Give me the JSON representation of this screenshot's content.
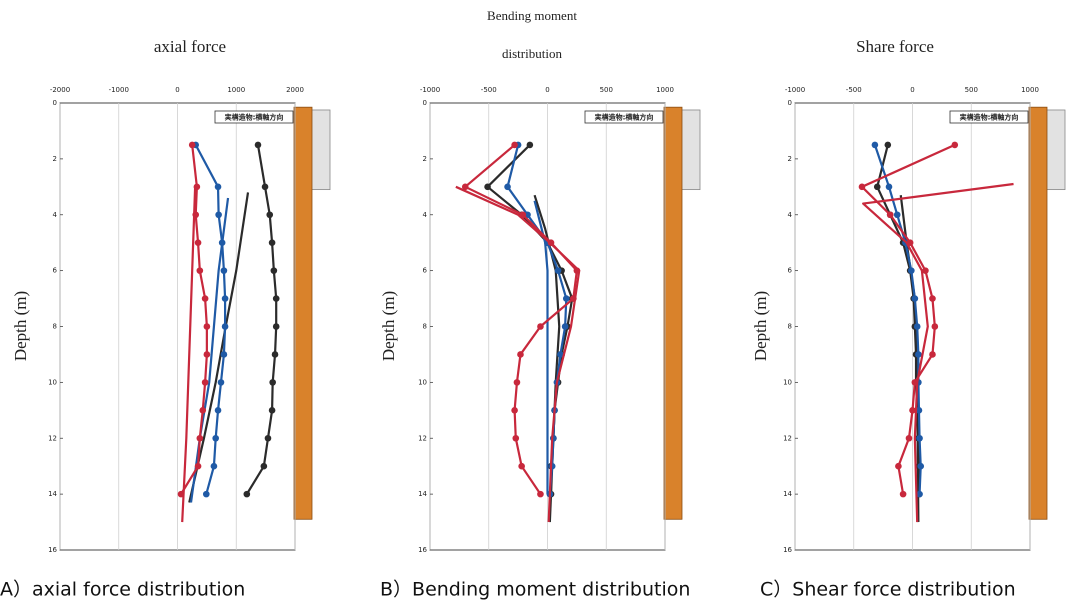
{
  "chart_data": [
    {
      "type": "line",
      "title": [
        "axial force"
      ],
      "caption": "A）axial force distribution",
      "ylabel": "Depth (m)",
      "note": "実構造物:横軸方向",
      "xlim": [
        -2000,
        2000
      ],
      "xticks": [
        -2000,
        -1000,
        0,
        1000,
        2000
      ],
      "ylim": [
        0,
        16
      ],
      "yticks": [
        0,
        2,
        4,
        6,
        8,
        10,
        12,
        14,
        16
      ],
      "y_inverted": true,
      "grid": "x",
      "series": [
        {
          "color": "#2b2b2b",
          "markers": true,
          "x": [
            1370,
            1490,
            1570,
            1610,
            1640,
            1680,
            1680,
            1660,
            1620,
            1610,
            1540,
            1470,
            1180
          ],
          "y": [
            1.5,
            3,
            4,
            5,
            6,
            7,
            8,
            9,
            10,
            11,
            12,
            13,
            14
          ]
        },
        {
          "color": "#2b2b2b",
          "markers": false,
          "x": [
            1200,
            1000,
            820,
            650,
            450,
            200
          ],
          "y": [
            3.2,
            6,
            8,
            10,
            12,
            14.3
          ]
        },
        {
          "color": "#1f5aa6",
          "markers": true,
          "x": [
            310,
            690,
            700,
            760,
            790,
            810,
            810,
            790,
            740,
            690,
            650,
            620,
            490
          ],
          "y": [
            1.5,
            3,
            4,
            5,
            6,
            7,
            8,
            9,
            10,
            11,
            12,
            13,
            14
          ]
        },
        {
          "color": "#1f5aa6",
          "markers": false,
          "x": [
            860,
            700,
            620,
            540,
            380,
            230
          ],
          "y": [
            3.4,
            6,
            8,
            10,
            12,
            14.3
          ]
        },
        {
          "color": "#c8283c",
          "markers": true,
          "x": [
            250,
            330,
            310,
            350,
            380,
            470,
            500,
            500,
            470,
            430,
            380,
            350,
            60
          ],
          "y": [
            1.5,
            3,
            4,
            5,
            6,
            7,
            8,
            9,
            10,
            11,
            12,
            13,
            14
          ]
        },
        {
          "color": "#c8283c",
          "markers": false,
          "x": [
            300,
            250,
            200,
            150,
            80
          ],
          "y": [
            3,
            6,
            9,
            12,
            15
          ]
        }
      ]
    },
    {
      "type": "line",
      "title": [
        "Bending moment",
        "distribution"
      ],
      "caption": "B）Bending moment distribution",
      "ylabel": "Depth (m)",
      "note": "実構造物:横軸方向",
      "xlim": [
        -1000,
        1000
      ],
      "xticks": [
        -1000,
        -500,
        0,
        500,
        1000
      ],
      "ylim": [
        0,
        16
      ],
      "yticks": [
        0,
        2,
        4,
        6,
        8,
        10,
        12,
        14,
        16
      ],
      "y_inverted": true,
      "grid": "x",
      "series": [
        {
          "color": "#2b2b2b",
          "markers": true,
          "x": [
            -150,
            -510,
            -220,
            0,
            120,
            210,
            170,
            120,
            90,
            60,
            50,
            30,
            30
          ],
          "y": [
            1.5,
            3,
            4,
            5,
            6,
            7,
            8,
            9,
            10,
            11,
            12,
            13,
            14
          ]
        },
        {
          "color": "#2b2b2b",
          "markers": false,
          "x": [
            -110,
            -20,
            70,
            100,
            70,
            50,
            20
          ],
          "y": [
            3.3,
            4.5,
            6,
            8,
            10,
            12,
            15
          ]
        },
        {
          "color": "#1f5aa6",
          "markers": true,
          "x": [
            -250,
            -340,
            -170,
            0,
            90,
            160,
            150,
            110,
            80,
            60,
            50,
            40,
            20
          ],
          "y": [
            1.5,
            3,
            4,
            5,
            6,
            7,
            8,
            9,
            10,
            11,
            12,
            13,
            14
          ]
        },
        {
          "color": "#1f5aa6",
          "markers": false,
          "x": [
            -110,
            -20,
            0,
            0
          ],
          "y": [
            3.5,
            5,
            6,
            14
          ]
        },
        {
          "color": "#c8283c",
          "markers": true,
          "x": [
            -280,
            -700,
            -210,
            30,
            250,
            220,
            -60,
            -230,
            -260,
            -280,
            -270,
            -220,
            -60
          ],
          "y": [
            1.5,
            3,
            4,
            5,
            6,
            7,
            8,
            9,
            10,
            11,
            12,
            13,
            14
          ]
        },
        {
          "color": "#c8283c",
          "markers": false,
          "x": [
            -780,
            -250,
            20,
            270,
            200,
            80,
            40,
            10
          ],
          "y": [
            3,
            4,
            5,
            6,
            8,
            10,
            12,
            15
          ]
        }
      ]
    },
    {
      "type": "line",
      "title": [
        "Share force"
      ],
      "caption": "C）Shear force distribution",
      "ylabel": "Depth (m)",
      "note": "実構造物:横軸方向",
      "xlim": [
        -1000,
        1000
      ],
      "xticks": [
        -1000,
        -500,
        0,
        500,
        1000
      ],
      "ylim": [
        0,
        16
      ],
      "yticks": [
        0,
        2,
        4,
        6,
        8,
        10,
        12,
        14,
        16
      ],
      "y_inverted": true,
      "grid": "x",
      "series": [
        {
          "color": "#2b2b2b",
          "markers": true,
          "x": [
            -210,
            -300,
            -190,
            -80,
            -20,
            10,
            20,
            30,
            30,
            40,
            50,
            55,
            55
          ],
          "y": [
            1.5,
            3,
            4,
            5,
            6,
            7,
            8,
            9,
            10,
            11,
            12,
            13,
            14
          ]
        },
        {
          "color": "#2b2b2b",
          "markers": false,
          "x": [
            -100,
            -50,
            20,
            40,
            50
          ],
          "y": [
            3.3,
            5,
            7,
            10,
            15
          ]
        },
        {
          "color": "#1f5aa6",
          "markers": true,
          "x": [
            -320,
            -200,
            -130,
            -60,
            -10,
            20,
            40,
            50,
            50,
            55,
            60,
            70,
            60
          ],
          "y": [
            1.5,
            3,
            4,
            5,
            6,
            7,
            8,
            9,
            10,
            11,
            12,
            13,
            14
          ]
        },
        {
          "color": "#c8283c",
          "markers": true,
          "x": [
            360,
            -430,
            -190,
            -20,
            110,
            170,
            190,
            170,
            20,
            0,
            -30,
            -120,
            -80
          ],
          "y": [
            1.5,
            3,
            4,
            5,
            6,
            7,
            8,
            9,
            10,
            11,
            12,
            13,
            14
          ]
        },
        {
          "color": "#c8283c",
          "markers": false,
          "x": [
            860,
            -420,
            -50,
            80,
            130,
            40,
            20,
            40
          ],
          "y": [
            2.9,
            3.6,
            5,
            6,
            8,
            10,
            12,
            15
          ]
        }
      ]
    }
  ]
}
